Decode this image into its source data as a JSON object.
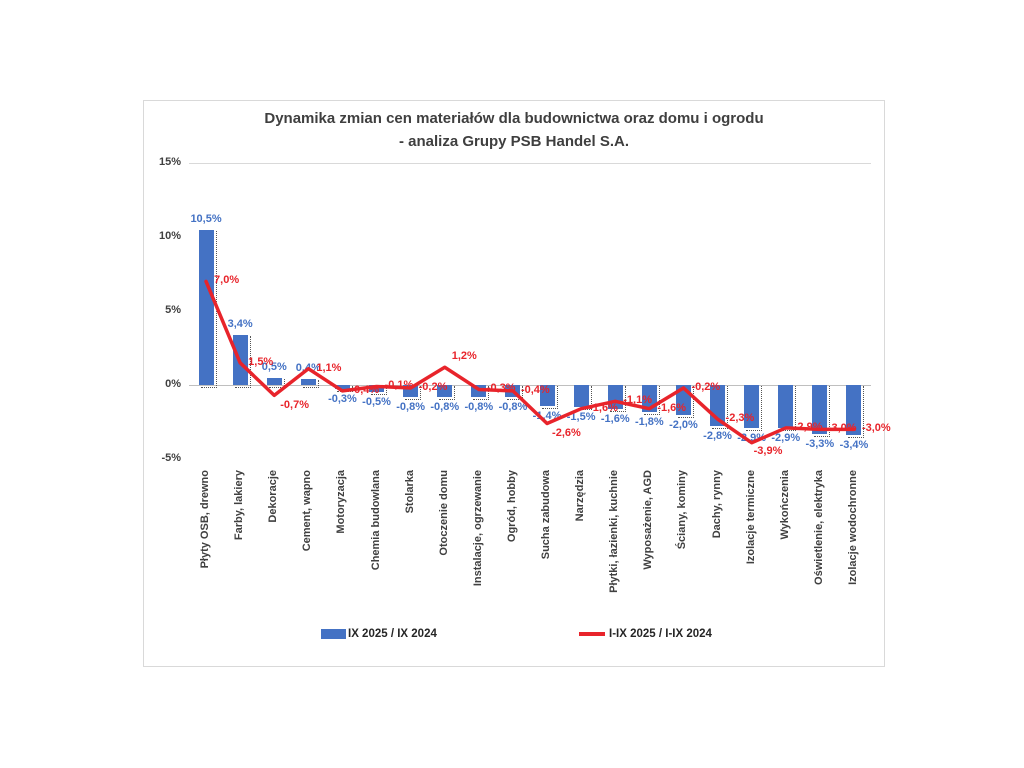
{
  "title": {
    "line1": "Dynamika zmian cen materiałów dla budownictwa oraz domu i ogrodu",
    "line2": "- analiza Grupy PSB Handel S.A."
  },
  "colors": {
    "bar": "#4472c4",
    "line": "#e8242b",
    "text_dark": "#404040",
    "gridline": "#d9d9d9",
    "frame_border": "#d9d9d9"
  },
  "y_axis": {
    "tick_labels": [
      "15%",
      "10%",
      "5%",
      "0%",
      "-5%"
    ],
    "tick_values": [
      15,
      10,
      5,
      0,
      -5
    ]
  },
  "legend": {
    "bar_label": "IX 2025 / IX 2024",
    "line_label": "I-IX 2025 / I-IX 2024"
  },
  "chart_data": {
    "type": "bar+line",
    "title": "Dynamika zmian cen materiałów dla budownictwa oraz domu i ogrodu - analiza Grupy PSB Handel S.A.",
    "ylim": [
      -5,
      15
    ],
    "grid": "top gridline and zero axis only",
    "legend_position": "bottom",
    "categories": [
      "Płyty OSB, drewno",
      "Farby, lakiery",
      "Dekoracje",
      "Cement, wapno",
      "Motoryzacja",
      "Chemia budowlana",
      "Stolarka",
      "Otoczenie domu",
      "Instalacje, ogrzewanie",
      "Ogród, hobby",
      "Sucha zabudowa",
      "Narzędzia",
      "Płytki, łazienki, kuchnie",
      "Wyposażenie, AGD",
      "Ściany, kominy",
      "Dachy, rynny",
      "Izolacje termiczne",
      "Wykończenia",
      "Oświetlenie, elektryka",
      "Izolacje wodochronne"
    ],
    "series": [
      {
        "name": "IX 2025 / IX 2024",
        "type": "bar",
        "values": [
          10.5,
          3.4,
          0.5,
          0.4,
          -0.3,
          -0.5,
          -0.8,
          -0.8,
          -0.8,
          -0.8,
          -1.4,
          -1.5,
          -1.6,
          -1.8,
          -2.0,
          -2.8,
          -2.9,
          -2.9,
          -3.3,
          -3.4
        ],
        "labels": [
          "10,5%",
          "3,4%",
          "0,5%",
          "0,4%",
          "-0,3%",
          "-0,5%",
          "-0,8%",
          "-0,8%",
          "-0,8%",
          "-0,8%",
          "-1,4%",
          "-1,5%",
          "-1,6%",
          "-1,8%",
          "-2,0%",
          "-2,8%",
          "-2,9%",
          "-2,9%",
          "-3,3%",
          "-3,4%"
        ]
      },
      {
        "name": "I-IX 2025 / I-IX 2024",
        "type": "line",
        "values": [
          7.0,
          1.5,
          -0.7,
          1.1,
          -0.4,
          -0.1,
          -0.2,
          1.2,
          -0.3,
          -0.4,
          -2.6,
          -1.6,
          -1.1,
          -1.6,
          -0.2,
          -2.3,
          -3.9,
          -2.9,
          -3.0,
          -3.0
        ],
        "labels": [
          "7,0%",
          "1,5%",
          "-0,7%",
          "1,1%",
          "-0,4%",
          "-0,1%",
          "-0,2%",
          "1,2%",
          "-0,3%",
          "-0,4%",
          "-2,6%",
          "-1,6%",
          "-1,1%",
          "-1,6%",
          "-0,2%",
          "-2,3%",
          "-3,9%",
          "-2,9%",
          "-3,0%",
          "-3,0%"
        ]
      }
    ]
  }
}
